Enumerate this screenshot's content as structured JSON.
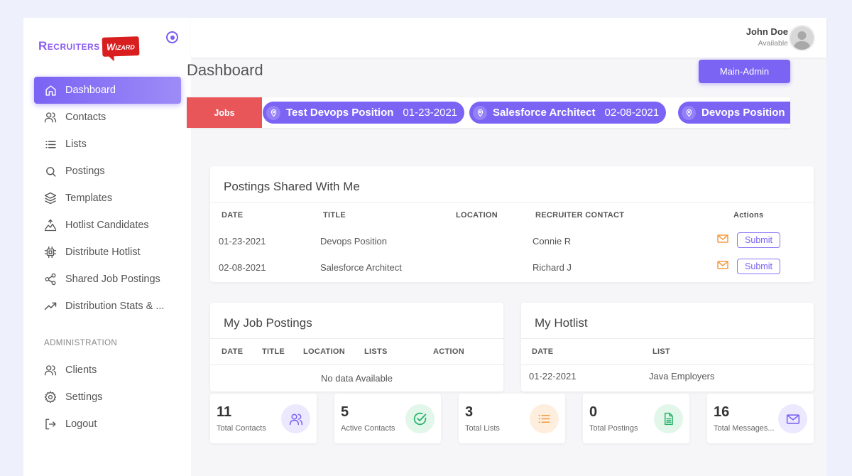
{
  "brand": {
    "name_part1": "Recruiters",
    "name_part2": "Wizard"
  },
  "user": {
    "name": "John Doe",
    "status": "Available"
  },
  "sidebar": {
    "items": [
      {
        "label": "Dashboard",
        "icon": "home-icon"
      },
      {
        "label": "Contacts",
        "icon": "users-icon"
      },
      {
        "label": "Lists",
        "icon": "list-icon"
      },
      {
        "label": "Postings",
        "icon": "search-icon"
      },
      {
        "label": "Templates",
        "icon": "layers-icon"
      },
      {
        "label": "Hotlist Candidates",
        "icon": "hotlist-icon"
      },
      {
        "label": "Distribute Hotlist",
        "icon": "chip-icon"
      },
      {
        "label": "Shared Job Postings",
        "icon": "share-icon"
      },
      {
        "label": "Distribution Stats & ...",
        "icon": "trending-up-icon"
      }
    ],
    "section_label": "ADMINISTRATION",
    "admin_items": [
      {
        "label": "Clients",
        "icon": "users-icon"
      },
      {
        "label": "Settings",
        "icon": "gear-icon"
      },
      {
        "label": "Logout",
        "icon": "logout-icon"
      }
    ]
  },
  "main": {
    "title": "Dashboard",
    "admin_button": "Main-Admin",
    "jobs_label": "Jobs",
    "jobs": [
      {
        "title": "Test Devops Position",
        "date": "01-23-2021"
      },
      {
        "title": "Salesforce Architect",
        "date": "02-08-2021"
      },
      {
        "title": "Devops Position",
        "date": ""
      }
    ]
  },
  "shared_postings": {
    "title": "Postings Shared With Me",
    "headers": [
      "DATE",
      "TITLE",
      "LOCATION",
      "RECRUITER CONTACT",
      "Actions"
    ],
    "rows": [
      {
        "date": "01-23-2021",
        "title": "Devops Position",
        "location": "",
        "contact": "Connie R",
        "action": "Submit"
      },
      {
        "date": "02-08-2021",
        "title": "Salesforce Architect",
        "location": "",
        "contact": "Richard J",
        "action": "Submit"
      }
    ]
  },
  "my_postings": {
    "title": "My Job Postings",
    "headers": [
      "DATE",
      "TITLE",
      "LOCATION",
      "LISTS",
      "ACTION"
    ],
    "empty_text": "No data Available"
  },
  "hotlist": {
    "title": "My Hotlist",
    "headers": [
      "DATE",
      "LIST"
    ],
    "rows": [
      {
        "date": "01-22-2021",
        "list": "Java Employers"
      }
    ]
  },
  "stats": [
    {
      "value": "11",
      "label": "Total Contacts",
      "icon": "users-icon",
      "color": "#7b63f4",
      "bg": "#ece8fd"
    },
    {
      "value": "5",
      "label": "Active Contacts",
      "icon": "check-circle-icon",
      "color": "#27b36a",
      "bg": "#e2f6ea"
    },
    {
      "value": "3",
      "label": "Total Lists",
      "icon": "list-icon",
      "color": "#f59a3c",
      "bg": "#fdeedd"
    },
    {
      "value": "0",
      "label": "Total Postings",
      "icon": "document-icon",
      "color": "#27b36a",
      "bg": "#e2f6ea"
    },
    {
      "value": "16",
      "label": "Total Messages...",
      "icon": "mail-icon",
      "color": "#7b63f4",
      "bg": "#ece8fd"
    }
  ]
}
